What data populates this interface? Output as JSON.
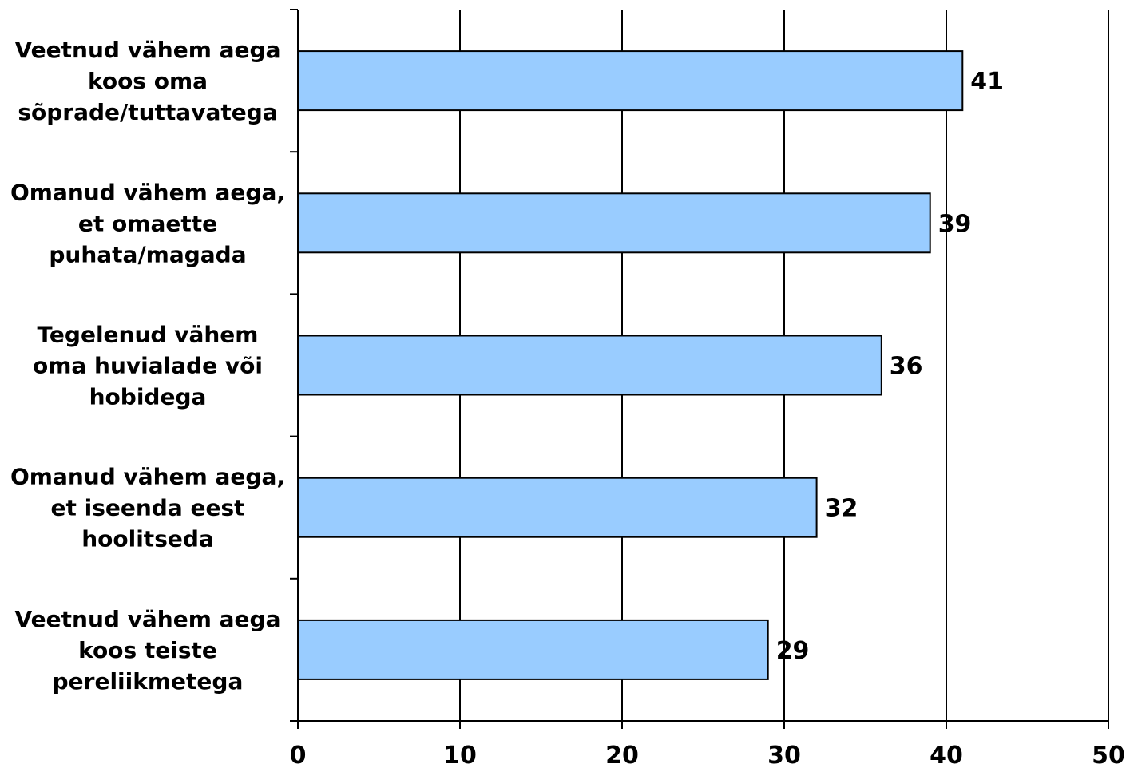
{
  "chart_data": {
    "type": "bar",
    "orientation": "horizontal",
    "categories": [
      [
        "Veetnud vähem aega",
        "koos oma",
        "sõprade/tuttavatega"
      ],
      [
        "Omanud vähem aega,",
        "et omaette",
        "puhata/magada"
      ],
      [
        "Tegelenud vähem",
        "oma huvialade või",
        "hobidega"
      ],
      [
        "Omanud vähem aega,",
        "et iseenda eest",
        "hoolitseda"
      ],
      [
        "Veetnud vähem aega",
        "koos teiste",
        "pereliikmetega"
      ]
    ],
    "values": [
      41,
      39,
      36,
      32,
      29
    ],
    "value_labels": [
      "41",
      "39",
      "36",
      "32",
      "29"
    ],
    "xlim": [
      0,
      50
    ],
    "xticks": [
      "0",
      "10",
      "20",
      "30",
      "40",
      "50"
    ],
    "title": "",
    "xlabel": "",
    "ylabel": "",
    "grid": "vertical",
    "legend": "none",
    "colors": {
      "bar_fill": "#99ccff",
      "bar_stroke": "#000000",
      "grid": "#000000",
      "background": "#ffffff"
    }
  }
}
